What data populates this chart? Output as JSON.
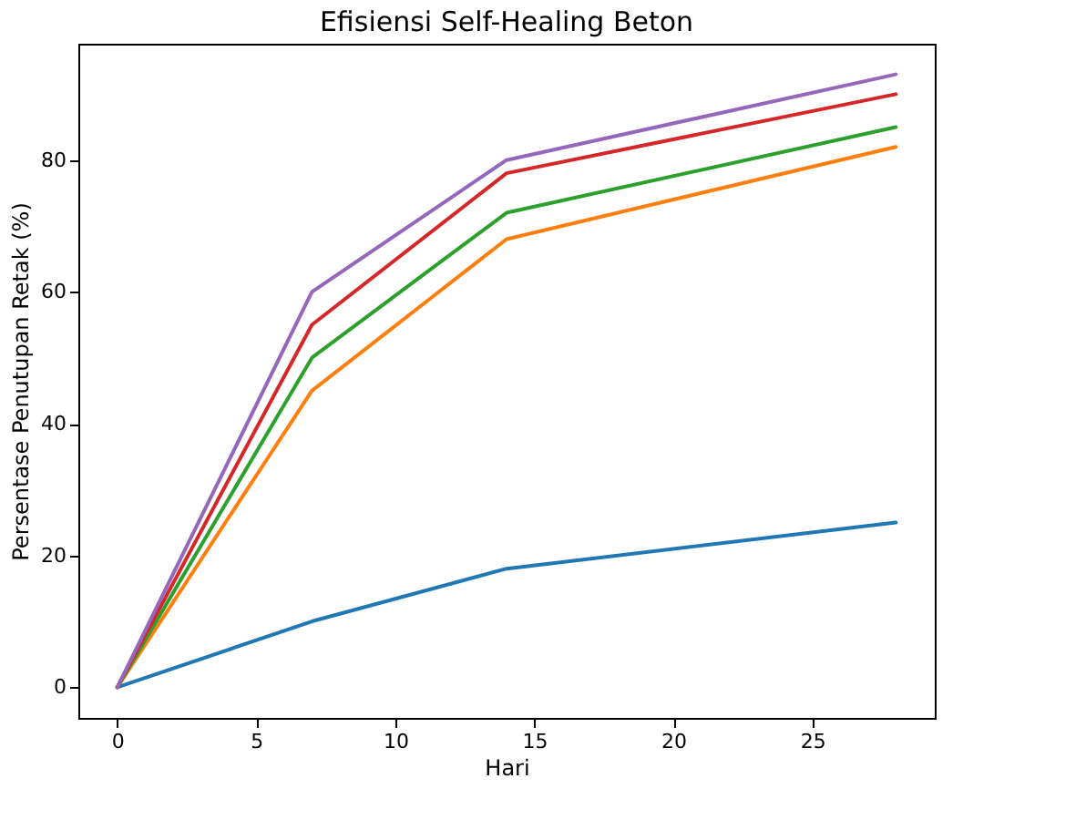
{
  "chart_data": {
    "type": "line",
    "title": "Efisiensi Self-Healing Beton",
    "xlabel": "Hari",
    "ylabel": "Persentase Penutupan Retak (%)",
    "x": [
      0,
      7,
      14,
      28
    ],
    "series": [
      {
        "color": "#1f77b4",
        "values": [
          0,
          10,
          18,
          25
        ]
      },
      {
        "color": "#ff7f0e",
        "values": [
          0,
          45,
          68,
          82
        ]
      },
      {
        "color": "#2ca02c",
        "values": [
          0,
          50,
          72,
          85
        ]
      },
      {
        "color": "#d62728",
        "values": [
          0,
          55,
          78,
          90
        ]
      },
      {
        "color": "#9467bd",
        "values": [
          0,
          60,
          80,
          93
        ]
      }
    ],
    "xlim": [
      -1.4,
      29.4
    ],
    "ylim": [
      -4.65,
      97.65
    ],
    "xticks": [
      0,
      5,
      10,
      15,
      20,
      25
    ],
    "yticks": [
      0,
      20,
      40,
      60,
      80
    ]
  }
}
